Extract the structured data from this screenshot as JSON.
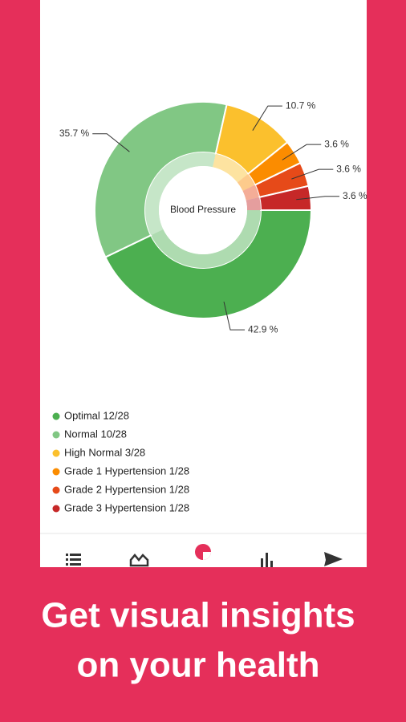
{
  "chart_data": {
    "type": "pie",
    "donut": true,
    "center_label": "Blood Pressure",
    "categories": [
      "Optimal 12/28",
      "Normal 10/28",
      "High Normal 3/28",
      "Grade 1 Hypertension 1/28",
      "Grade 2 Hypertension 1/28",
      "Grade 3 Hypertension 1/28"
    ],
    "values": [
      42.9,
      35.7,
      10.7,
      3.6,
      3.6,
      3.6
    ],
    "value_labels": [
      "42.9 %",
      "35.7 %",
      "10.7 %",
      "3.6 %",
      "3.6 %",
      "3.6 %"
    ],
    "colors": [
      "#4caf50",
      "#81c784",
      "#fbc02d",
      "#fb8c00",
      "#e64a19",
      "#c62828"
    ],
    "legend": "bottom-left"
  },
  "caption": [
    "Get visual insights",
    "on your health"
  ]
}
